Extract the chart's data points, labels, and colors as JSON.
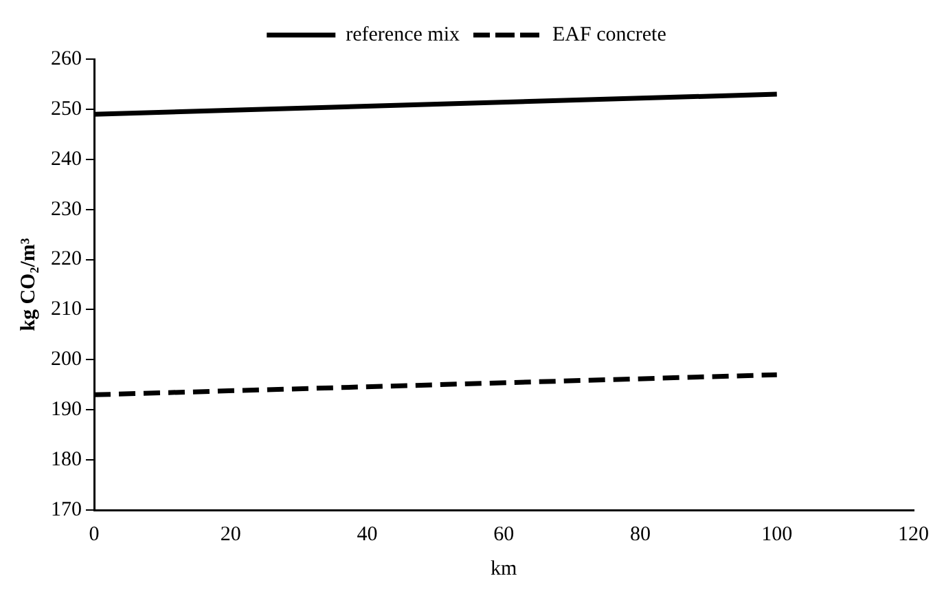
{
  "chart_data": {
    "type": "line",
    "xlabel": "km",
    "ylabel": "kg CO₂/m³",
    "x": [
      0,
      100
    ],
    "series": [
      {
        "name": "reference mix",
        "color": "#000000",
        "values": [
          249,
          253
        ],
        "line_style": "solid"
      },
      {
        "name": "EAF concrete",
        "color": "#000000",
        "values": [
          193,
          197
        ],
        "line_style": "dashed"
      }
    ],
    "xlim": [
      0,
      120
    ],
    "xticks": [
      0,
      20,
      40,
      60,
      80,
      100,
      120
    ],
    "ylim": [
      170,
      260
    ],
    "yticks": [
      170,
      180,
      190,
      200,
      210,
      220,
      230,
      240,
      250,
      260
    ],
    "grid": false,
    "legend": "top",
    "marker": "none"
  }
}
